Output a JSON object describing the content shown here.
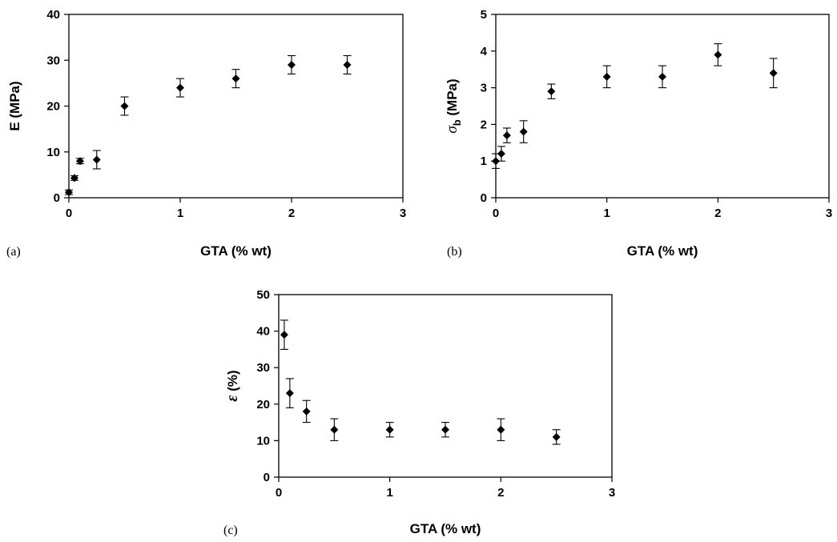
{
  "chart_data": [
    {
      "type": "scatter",
      "panel_label": "(a)",
      "xlabel": "GTA (% wt)",
      "ylabel": "E (MPa)",
      "ylabel_parts": null,
      "xlim": [
        0,
        3
      ],
      "ylim": [
        0,
        40
      ],
      "xticks": [
        "0",
        "1",
        "2",
        "3"
      ],
      "yticks": [
        "0",
        "10",
        "20",
        "30",
        "40"
      ],
      "grid": false,
      "points": [
        {
          "x": 0,
          "y": 1.2,
          "err": 0.5
        },
        {
          "x": 0.05,
          "y": 4.3,
          "err": 0.5
        },
        {
          "x": 0.1,
          "y": 8.0,
          "err": 0.6
        },
        {
          "x": 0.25,
          "y": 8.3,
          "err": 2.0
        },
        {
          "x": 0.5,
          "y": 20.0,
          "err": 2.0
        },
        {
          "x": 1.0,
          "y": 24.0,
          "err": 2.0
        },
        {
          "x": 1.5,
          "y": 26.0,
          "err": 2.0
        },
        {
          "x": 2.0,
          "y": 29.0,
          "err": 2.0
        },
        {
          "x": 2.5,
          "y": 29.0,
          "err": 2.0
        }
      ]
    },
    {
      "type": "scatter",
      "panel_label": "(b)",
      "xlabel": "GTA (% wt)",
      "ylabel": "σb (MPa)",
      "ylabel_parts": {
        "main": "σ",
        "sub": "b",
        "rest": " (MPa)"
      },
      "xlim": [
        0,
        3
      ],
      "ylim": [
        0,
        5
      ],
      "xticks": [
        "0",
        "1",
        "2",
        "3"
      ],
      "yticks": [
        "0",
        "1",
        "2",
        "3",
        "4",
        "5"
      ],
      "grid": false,
      "points": [
        {
          "x": 0,
          "y": 1.0,
          "err": 0.2
        },
        {
          "x": 0.05,
          "y": 1.2,
          "err": 0.2
        },
        {
          "x": 0.1,
          "y": 1.7,
          "err": 0.2
        },
        {
          "x": 0.25,
          "y": 1.8,
          "err": 0.3
        },
        {
          "x": 0.5,
          "y": 2.9,
          "err": 0.2
        },
        {
          "x": 1.0,
          "y": 3.3,
          "err": 0.3
        },
        {
          "x": 1.5,
          "y": 3.3,
          "err": 0.3
        },
        {
          "x": 2.0,
          "y": 3.9,
          "err": 0.3
        },
        {
          "x": 2.5,
          "y": 3.4,
          "err": 0.4
        }
      ]
    },
    {
      "type": "scatter",
      "panel_label": "(c)",
      "xlabel": "GTA (% wt)",
      "ylabel": "ε (%)",
      "ylabel_parts": null,
      "xlim": [
        0,
        3
      ],
      "ylim": [
        0,
        50
      ],
      "xticks": [
        "0",
        "1",
        "2",
        "3"
      ],
      "yticks": [
        "0",
        "10",
        "20",
        "30",
        "40",
        "50"
      ],
      "grid": false,
      "points": [
        {
          "x": 0.05,
          "y": 39,
          "err": 4
        },
        {
          "x": 0.1,
          "y": 23,
          "err": 4
        },
        {
          "x": 0.25,
          "y": 18,
          "err": 3
        },
        {
          "x": 0.5,
          "y": 13,
          "err": 3
        },
        {
          "x": 1.0,
          "y": 13,
          "err": 2
        },
        {
          "x": 1.5,
          "y": 13,
          "err": 2
        },
        {
          "x": 2.0,
          "y": 13,
          "err": 3
        },
        {
          "x": 2.5,
          "y": 11,
          "err": 2
        }
      ]
    }
  ]
}
